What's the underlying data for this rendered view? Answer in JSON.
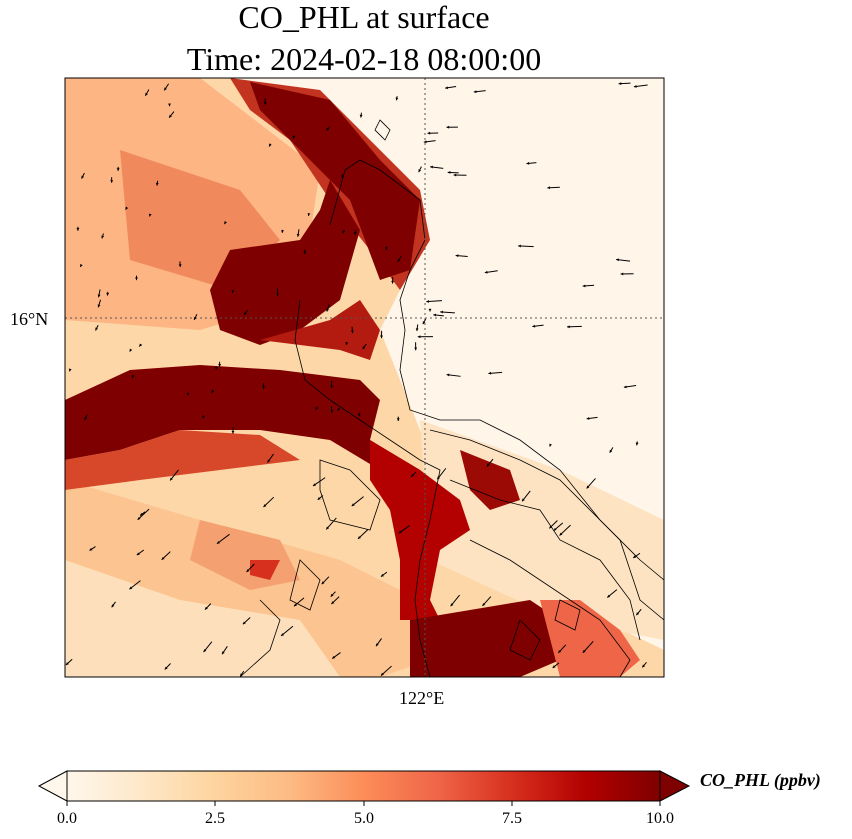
{
  "title": {
    "line1": "CO_PHL at surface",
    "line2": "Time: 2024-02-18 08:00:00"
  },
  "map": {
    "gridlines": {
      "lat": "16°N",
      "lon": "122°E"
    },
    "field": "CO_PHL",
    "colormap": "OrRd",
    "vector_field": "surface wind arrows"
  },
  "colorbar": {
    "label": "CO_PHL (ppbv)",
    "min": 0.0,
    "max": 10.0,
    "extend": "both",
    "ticks": [
      "0.0",
      "2.5",
      "5.0",
      "7.5",
      "10.0"
    ],
    "colors": [
      "#fff7ec",
      "#fee8c8",
      "#fdd49e",
      "#fdbb84",
      "#fc8d59",
      "#ef6548",
      "#d7301f",
      "#b30000",
      "#7f0000"
    ]
  }
}
